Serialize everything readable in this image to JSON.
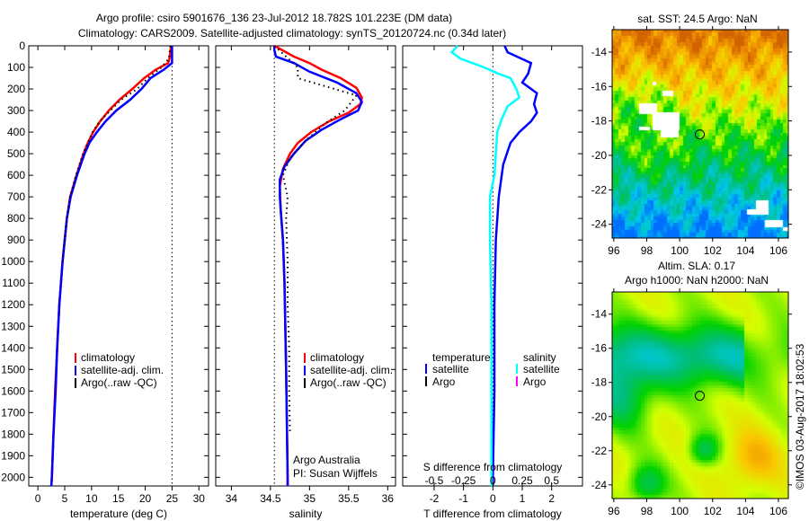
{
  "title": {
    "line1": "Argo profile: csiro 5901676_136 23-Jul-2012 18.782S 101.223E (DM data)",
    "line2": "Climatology: CARS2009. Satellite-adjusted climatology: synTS_20120724.nc (0.34d later)"
  },
  "colors": {
    "climatology": "#ff0000",
    "satellite": "#0000ff",
    "argo": "#000000",
    "sal_satellite": "#00ffff",
    "sal_argo": "#ff00ff"
  },
  "chart_data": [
    {
      "type": "line",
      "name": "temperature",
      "xlabel": "temperature (deg C)",
      "ylabel": "",
      "xlim": [
        -1.7,
        31.8
      ],
      "ylim": [
        2040,
        0
      ],
      "xticks": [
        0,
        5,
        10,
        15,
        20,
        25,
        30
      ],
      "yticks": [
        0,
        100,
        200,
        300,
        400,
        500,
        600,
        700,
        800,
        900,
        1000,
        1100,
        1200,
        1300,
        1400,
        1500,
        1600,
        1700,
        1800,
        1900,
        2000
      ],
      "ref_line_x": 25,
      "legend": [
        "climatology",
        "satellite-adj. clim.",
        "Argo(..raw -QC)"
      ],
      "series": [
        {
          "name": "climatology",
          "color": "#ff0000",
          "points": [
            [
              24.8,
              0
            ],
            [
              24.6,
              50
            ],
            [
              24.3,
              80
            ],
            [
              22,
              110
            ],
            [
              19.8,
              150
            ],
            [
              17.6,
              200
            ],
            [
              15.2,
              250
            ],
            [
              13.2,
              300
            ],
            [
              11.6,
              350
            ],
            [
              10.3,
              400
            ],
            [
              9.3,
              450
            ],
            [
              8.5,
              500
            ],
            [
              7.2,
              600
            ],
            [
              6,
              700
            ],
            [
              5.4,
              800
            ],
            [
              5,
              900
            ],
            [
              4.6,
              1000
            ],
            [
              4,
              1200
            ],
            [
              3.6,
              1400
            ],
            [
              3.2,
              1600
            ],
            [
              2.9,
              1800
            ],
            [
              2.6,
              2000
            ],
            [
              2.5,
              2040
            ]
          ]
        },
        {
          "name": "satellite-adj. clim.",
          "color": "#0000ff",
          "points": [
            [
              25,
              0
            ],
            [
              25,
              50
            ],
            [
              25,
              80
            ],
            [
              23.5,
              110
            ],
            [
              21,
              150
            ],
            [
              19.3,
              200
            ],
            [
              17.2,
              250
            ],
            [
              14.6,
              300
            ],
            [
              12.6,
              350
            ],
            [
              11,
              400
            ],
            [
              9.6,
              450
            ],
            [
              8.7,
              500
            ],
            [
              7.3,
              600
            ],
            [
              6.1,
              700
            ],
            [
              5.4,
              800
            ],
            [
              5,
              900
            ],
            [
              4.6,
              1000
            ],
            [
              4,
              1200
            ],
            [
              3.6,
              1400
            ],
            [
              3.3,
              1600
            ],
            [
              2.9,
              1800
            ],
            [
              2.6,
              2000
            ],
            [
              2.5,
              2040
            ]
          ]
        },
        {
          "name": "Argo(..raw -QC)",
          "color": "#000000",
          "points": [
            [
              24.7,
              0
            ],
            [
              24.4,
              60
            ],
            [
              23,
              100
            ],
            [
              20.5,
              150
            ],
            [
              18.5,
              200
            ],
            [
              15.5,
              250
            ],
            [
              13.5,
              300
            ],
            [
              11.5,
              350
            ],
            [
              10.2,
              400
            ],
            [
              8.4,
              500
            ],
            [
              7.1,
              600
            ],
            [
              6,
              700
            ],
            [
              5.4,
              800
            ],
            [
              4.6,
              1000
            ]
          ]
        }
      ]
    },
    {
      "type": "line",
      "name": "salinity",
      "xlabel": "salinity",
      "xlim": [
        33.8,
        36.1
      ],
      "ylim": [
        2040,
        0
      ],
      "xticks": [
        34,
        34.5,
        35,
        35.5,
        36
      ],
      "ref_line_x": 34.55,
      "legend": [
        "climatology",
        "satellite-adj. clim.",
        "Argo(..raw -QC)"
      ],
      "annotation": [
        "Argo Australia",
        "PI: Susan Wijffels"
      ],
      "series": [
        {
          "name": "climatology",
          "color": "#ff0000",
          "points": [
            [
              34.55,
              0
            ],
            [
              34.6,
              10
            ],
            [
              34.8,
              50
            ],
            [
              35.0,
              80
            ],
            [
              35.15,
              110
            ],
            [
              35.4,
              150
            ],
            [
              35.6,
              195
            ],
            [
              35.67,
              240
            ],
            [
              35.65,
              270
            ],
            [
              35.5,
              310
            ],
            [
              35.25,
              350
            ],
            [
              35.02,
              400
            ],
            [
              34.85,
              450
            ],
            [
              34.75,
              500
            ],
            [
              34.66,
              570
            ],
            [
              34.62,
              650
            ],
            [
              34.63,
              760
            ],
            [
              34.66,
              900
            ],
            [
              34.68,
              1100
            ],
            [
              34.7,
              1500
            ],
            [
              34.72,
              2000
            ],
            [
              34.72,
              2040
            ]
          ]
        },
        {
          "name": "satellite-adj. clim.",
          "color": "#0000ff",
          "points": [
            [
              34.55,
              0
            ],
            [
              34.55,
              20
            ],
            [
              34.57,
              50
            ],
            [
              34.8,
              80
            ],
            [
              35.0,
              120
            ],
            [
              35.35,
              170
            ],
            [
              35.6,
              220
            ],
            [
              35.67,
              260
            ],
            [
              35.62,
              300
            ],
            [
              35.4,
              340
            ],
            [
              35.15,
              390
            ],
            [
              34.95,
              440
            ],
            [
              34.8,
              500
            ],
            [
              34.68,
              560
            ],
            [
              34.62,
              620
            ],
            [
              34.62,
              700
            ],
            [
              34.64,
              800
            ],
            [
              34.66,
              900
            ],
            [
              34.68,
              1100
            ],
            [
              34.7,
              1500
            ],
            [
              34.72,
              2000
            ],
            [
              34.72,
              2040
            ]
          ]
        },
        {
          "name": "Argo(..raw -QC)",
          "color": "#000000",
          "points": [
            [
              34.55,
              0
            ],
            [
              34.85,
              100
            ],
            [
              34.85,
              150
            ],
            [
              35.6,
              230
            ],
            [
              35.45,
              300
            ],
            [
              35.2,
              360
            ],
            [
              34.95,
              440
            ],
            [
              34.75,
              520
            ],
            [
              34.66,
              600
            ],
            [
              34.72,
              700
            ],
            [
              34.7,
              800
            ],
            [
              34.72,
              1000
            ],
            [
              34.72,
              1200
            ],
            [
              34.74,
              1400
            ],
            [
              34.74,
              1600
            ],
            [
              34.75,
              1800
            ]
          ]
        }
      ]
    },
    {
      "type": "line",
      "name": "differences",
      "xlabel": "T difference from climatology",
      "xlabel2": "S difference from climatology",
      "xlim": [
        -3.07,
        3.05
      ],
      "ylim": [
        2040,
        0
      ],
      "xticks": [
        -2,
        -1,
        0,
        1,
        2
      ],
      "xticks2": [
        -0.5,
        -0.25,
        0,
        0.25,
        0.5
      ],
      "xticks2_labels": [
        "-0.5",
        "-0.25",
        "0",
        "0.25",
        "0.5"
      ],
      "ref_line_x": 0,
      "legend_titles": [
        "temperature",
        "salinity"
      ],
      "legend": [
        "satellite",
        "Argo",
        "satellite",
        "Argo"
      ],
      "series": [
        {
          "name": "T satellite",
          "color": "#0000ff",
          "points": [
            [
              0.4,
              0
            ],
            [
              0.5,
              30
            ],
            [
              1.3,
              80
            ],
            [
              1.2,
              130
            ],
            [
              1.0,
              170
            ],
            [
              1.5,
              220
            ],
            [
              1.4,
              270
            ],
            [
              1.5,
              310
            ],
            [
              1.3,
              350
            ],
            [
              0.9,
              400
            ],
            [
              0.6,
              450
            ],
            [
              0.35,
              550
            ],
            [
              0.2,
              700
            ],
            [
              0.1,
              900
            ],
            [
              0.05,
              1200
            ],
            [
              0.05,
              1600
            ],
            [
              0.0,
              2000
            ],
            [
              0.0,
              2040
            ]
          ]
        },
        {
          "name": "S satellite",
          "color": "#00ffff",
          "points": [
            [
              -1.2,
              0
            ],
            [
              -1.4,
              30
            ],
            [
              -1.1,
              60
            ],
            [
              -0.3,
              100
            ],
            [
              0.2,
              130
            ],
            [
              0.6,
              150
            ],
            [
              0.8,
              200
            ],
            [
              0.9,
              240
            ],
            [
              0.5,
              280
            ],
            [
              0.3,
              340
            ],
            [
              0.15,
              400
            ],
            [
              0.1,
              500
            ],
            [
              0.05,
              600
            ],
            [
              -0.1,
              700
            ],
            [
              -0.1,
              900
            ],
            [
              -0.05,
              1200
            ],
            [
              -0.05,
              1600
            ],
            [
              -0.05,
              2000
            ],
            [
              -0.05,
              2040
            ]
          ]
        }
      ]
    },
    {
      "type": "heatmap",
      "name": "sst-map",
      "title": "sat. SST: 24.5 Argo: NaN",
      "xlim": [
        95.9,
        106.6
      ],
      "ylim": [
        -24.8,
        -12.7
      ],
      "xticks": [
        96,
        98,
        100,
        102,
        104,
        106
      ],
      "yticks": [
        -14,
        -16,
        -18,
        -20,
        -22,
        -24
      ],
      "marker": [
        101.223,
        -18.782
      ]
    },
    {
      "type": "heatmap",
      "name": "sla-map",
      "title": "Altim. SLA: 0.17",
      "subtitle": "Argo h1000: NaN h2000: NaN",
      "xlim": [
        95.9,
        106.6
      ],
      "ylim": [
        -24.8,
        -12.7
      ],
      "xticks": [
        96,
        98,
        100,
        102,
        104,
        106
      ],
      "yticks": [
        -14,
        -16,
        -18,
        -20,
        -22,
        -24
      ],
      "marker": [
        101.223,
        -18.782
      ]
    }
  ],
  "credit": "©IMOS 03-Aug-2017 18:02:53"
}
